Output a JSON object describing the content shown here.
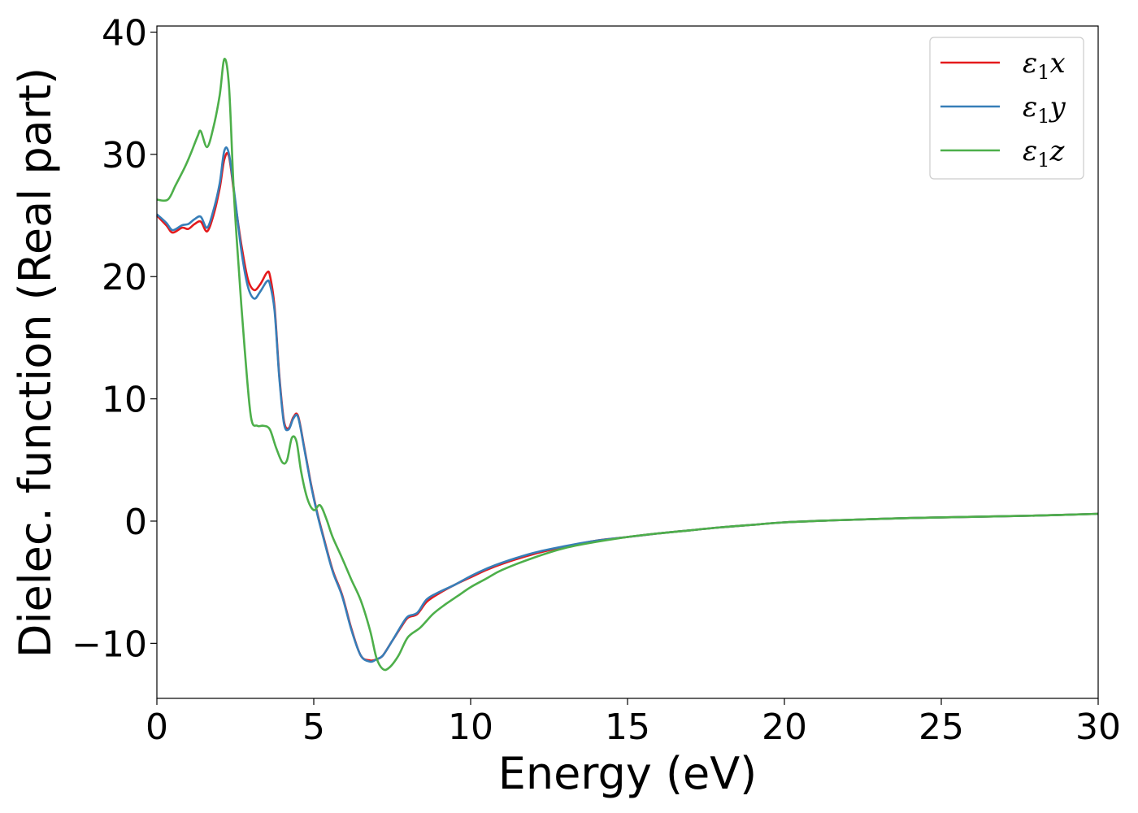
{
  "chart_data": {
    "type": "line",
    "xlabel": "Energy (eV)",
    "ylabel": "Dielec. function (Real part)",
    "xlim": [
      0,
      30
    ],
    "ylim": [
      -14.5,
      40.5
    ],
    "xticks": [
      0,
      5,
      10,
      15,
      20,
      25,
      30
    ],
    "xtick_labels": [
      "0",
      "5",
      "10",
      "15",
      "20",
      "25",
      "30"
    ],
    "yticks": [
      -10,
      0,
      10,
      20,
      30,
      40
    ],
    "ytick_labels": [
      "−10",
      "0",
      "10",
      "20",
      "30",
      "40"
    ],
    "grid": false,
    "legend_position": "top-right",
    "series": [
      {
        "name": "ε₁x",
        "label_main": "ε",
        "label_sub": "1",
        "label_tail": "x",
        "color": "#e41a1c",
        "x": [
          0,
          0.3,
          0.5,
          0.8,
          1.0,
          1.2,
          1.4,
          1.6,
          1.8,
          2.0,
          2.15,
          2.3,
          2.5,
          2.7,
          2.9,
          3.1,
          3.3,
          3.5,
          3.6,
          3.75,
          3.9,
          4.05,
          4.2,
          4.35,
          4.5,
          4.7,
          4.9,
          5.1,
          5.3,
          5.6,
          5.9,
          6.2,
          6.5,
          6.8,
          7.0,
          7.2,
          7.5,
          7.8,
          8.0,
          8.3,
          8.6,
          9.0,
          9.5,
          10.0,
          10.5,
          11.0,
          12.0,
          13.0,
          14.0,
          15.0,
          16.0,
          17.0,
          18.0,
          19.0,
          20.0,
          22.0,
          24.0,
          26.0,
          28.0,
          30.0
        ],
        "values": [
          25.0,
          24.2,
          23.6,
          24.0,
          23.9,
          24.3,
          24.5,
          23.7,
          25.0,
          27.2,
          29.6,
          29.8,
          26.0,
          22.5,
          19.8,
          18.9,
          19.4,
          20.3,
          20.1,
          17.5,
          12.0,
          8.2,
          7.6,
          8.5,
          8.6,
          6.0,
          3.2,
          0.8,
          -1.2,
          -4.0,
          -6.0,
          -8.8,
          -11.0,
          -11.4,
          -11.3,
          -11.0,
          -9.8,
          -8.6,
          -7.9,
          -7.6,
          -6.6,
          -5.9,
          -5.2,
          -4.6,
          -4.0,
          -3.5,
          -2.7,
          -2.1,
          -1.6,
          -1.3,
          -1.0,
          -0.75,
          -0.5,
          -0.3,
          -0.1,
          0.1,
          0.25,
          0.35,
          0.45,
          0.6
        ]
      },
      {
        "name": "ε₁y",
        "label_main": "ε",
        "label_sub": "1",
        "label_tail": "y",
        "color": "#377eb8",
        "x": [
          0,
          0.3,
          0.5,
          0.8,
          1.0,
          1.2,
          1.4,
          1.6,
          1.8,
          2.0,
          2.15,
          2.3,
          2.5,
          2.7,
          2.9,
          3.1,
          3.3,
          3.5,
          3.6,
          3.75,
          3.9,
          4.05,
          4.2,
          4.35,
          4.5,
          4.7,
          4.9,
          5.1,
          5.3,
          5.6,
          5.9,
          6.2,
          6.5,
          6.8,
          7.0,
          7.2,
          7.5,
          7.8,
          8.0,
          8.3,
          8.6,
          9.0,
          9.5,
          10.0,
          10.5,
          11.0,
          12.0,
          13.0,
          14.0,
          15.0,
          16.0,
          17.0,
          18.0,
          19.0,
          20.0,
          22.0,
          24.0,
          26.0,
          28.0,
          30.0
        ],
        "values": [
          25.1,
          24.4,
          23.8,
          24.2,
          24.3,
          24.7,
          24.9,
          24.0,
          25.4,
          27.6,
          30.3,
          30.0,
          26.2,
          22.0,
          19.2,
          18.2,
          18.8,
          19.6,
          19.4,
          17.2,
          11.8,
          8.0,
          7.5,
          8.4,
          8.5,
          5.9,
          3.1,
          0.7,
          -1.3,
          -4.1,
          -6.1,
          -8.9,
          -11.0,
          -11.5,
          -11.3,
          -11.0,
          -9.8,
          -8.5,
          -7.8,
          -7.5,
          -6.4,
          -5.8,
          -5.2,
          -4.5,
          -3.9,
          -3.4,
          -2.6,
          -2.05,
          -1.6,
          -1.3,
          -1.0,
          -0.75,
          -0.5,
          -0.3,
          -0.1,
          0.1,
          0.25,
          0.35,
          0.45,
          0.6
        ]
      },
      {
        "name": "ε₁z",
        "label_main": "ε",
        "label_sub": "1",
        "label_tail": "z",
        "color": "#4daf4a",
        "x": [
          0,
          0.35,
          0.6,
          0.9,
          1.1,
          1.3,
          1.4,
          1.6,
          1.8,
          2.0,
          2.15,
          2.3,
          2.45,
          2.6,
          2.8,
          3.0,
          3.2,
          3.4,
          3.6,
          3.8,
          4.0,
          4.15,
          4.3,
          4.45,
          4.6,
          4.8,
          5.0,
          5.2,
          5.4,
          5.6,
          5.9,
          6.2,
          6.5,
          6.8,
          7.0,
          7.2,
          7.4,
          7.7,
          8.0,
          8.4,
          8.8,
          9.2,
          9.6,
          10.0,
          10.5,
          11.0,
          12.0,
          13.0,
          14.0,
          15.0,
          16.0,
          17.0,
          18.0,
          19.0,
          20.0,
          22.0,
          24.0,
          26.0,
          28.0,
          30.0
        ],
        "values": [
          26.3,
          26.3,
          27.5,
          29.0,
          30.2,
          31.5,
          31.9,
          30.6,
          32.2,
          34.8,
          37.8,
          35.5,
          27.0,
          21.0,
          14.0,
          8.5,
          7.8,
          7.8,
          7.5,
          6.0,
          4.8,
          5.0,
          6.8,
          6.5,
          4.0,
          1.8,
          0.9,
          1.3,
          0.2,
          -1.3,
          -3.0,
          -4.8,
          -6.5,
          -9.0,
          -11.2,
          -12.1,
          -12.0,
          -11.0,
          -9.5,
          -8.7,
          -7.6,
          -6.8,
          -6.1,
          -5.4,
          -4.7,
          -4.0,
          -3.0,
          -2.2,
          -1.7,
          -1.3,
          -1.0,
          -0.75,
          -0.5,
          -0.3,
          -0.1,
          0.1,
          0.25,
          0.35,
          0.45,
          0.6
        ]
      }
    ]
  }
}
